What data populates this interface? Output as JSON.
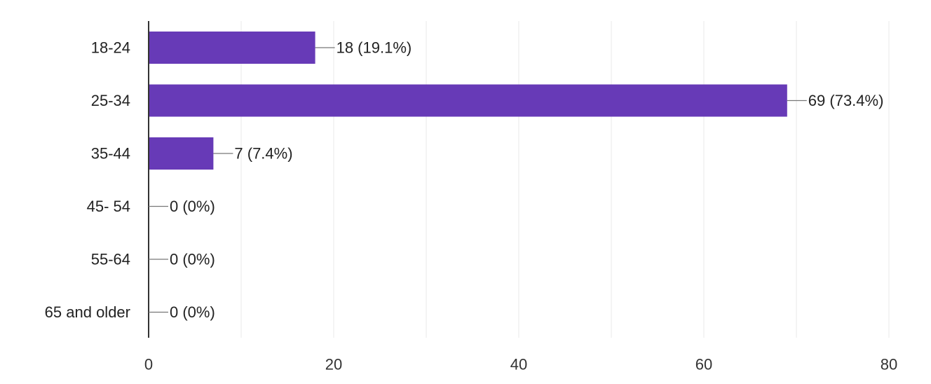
{
  "chart_data": {
    "type": "bar",
    "orientation": "horizontal",
    "title": "",
    "xlabel": "",
    "ylabel": "",
    "categories": [
      "18-24",
      "25-34",
      "35-44",
      "45- 54",
      "55-64",
      "65 and older"
    ],
    "values": [
      18,
      69,
      7,
      0,
      0,
      0
    ],
    "data_labels": [
      "18 (19.1%)",
      "69 (73.4%)",
      "7 (7.4%)",
      "0 (0%)",
      "0 (0%)",
      "0 (0%)"
    ],
    "xlim": [
      0,
      80
    ],
    "x_ticks": [
      0,
      20,
      40,
      60,
      80
    ],
    "x_tick_labels": [
      "0",
      "20",
      "40",
      "60",
      "80"
    ],
    "grid": true,
    "minor_grid": true,
    "legend": "none",
    "bar_color": "#673ab7",
    "grid_color": "#e8e8e8",
    "axis_color": "#333333",
    "leader_color": "#777777"
  }
}
